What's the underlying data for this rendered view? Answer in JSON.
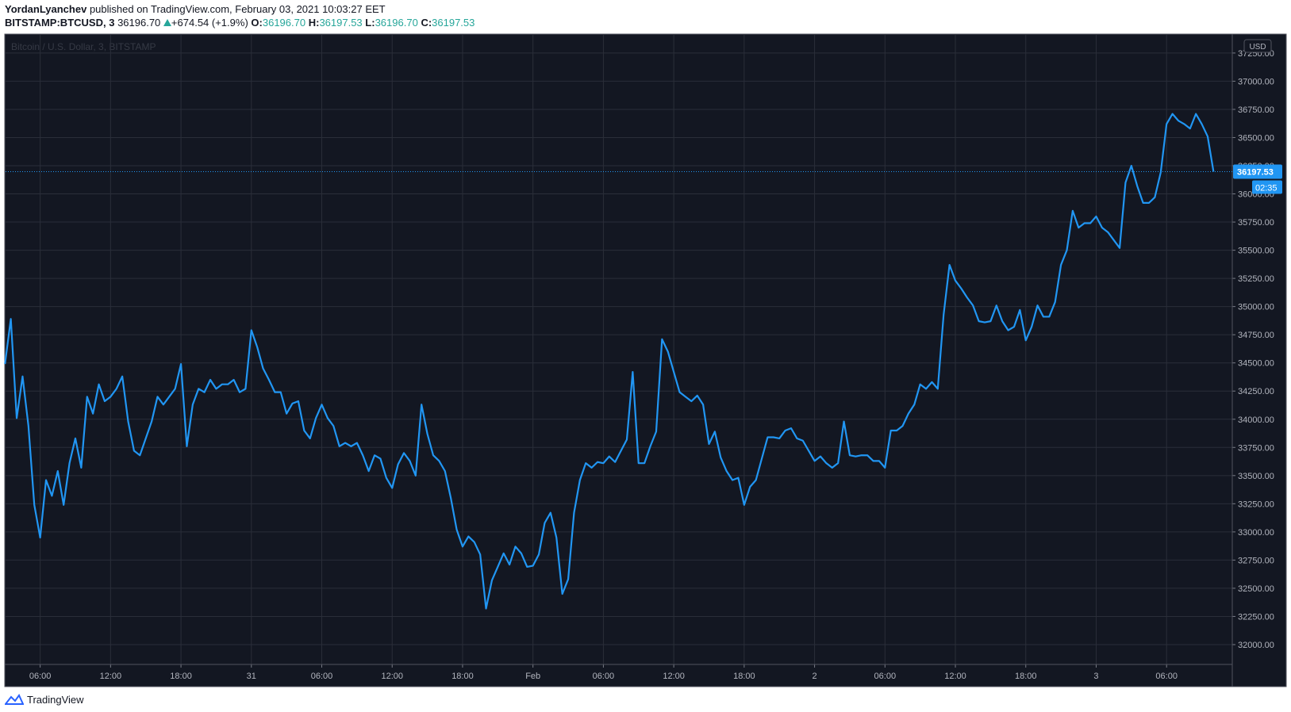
{
  "header": {
    "author": "YordanLyanchev",
    "published": "published on TradingView.com, February 03, 2021 10:03:27 EET"
  },
  "legend": {
    "symbol": "BITSTAMP:BTCUSD, 3",
    "last": "36196.70",
    "change": "+674.54 (+1.9%)",
    "open_label": "O:",
    "open": "36196.70",
    "high_label": "H:",
    "high": "36197.53",
    "low_label": "L:",
    "low": "36196.70",
    "close_label": "C:",
    "close": "36197.53"
  },
  "footer": {
    "brand": "TradingView"
  },
  "chart_data": {
    "type": "line",
    "watermark": "Bitcoin / U.S. Dollar, 3, BITSTAMP",
    "currency": "USD",
    "countdown": "02:35",
    "color": "#2196f3",
    "grid": true,
    "xlim": [
      3.05,
      107.6
    ],
    "xticks": [
      {
        "value": 6,
        "label": "06:00"
      },
      {
        "value": 12,
        "label": "12:00"
      },
      {
        "value": 18,
        "label": "18:00"
      },
      {
        "value": 24,
        "label": "31"
      },
      {
        "value": 30,
        "label": "06:00"
      },
      {
        "value": 36,
        "label": "12:00"
      },
      {
        "value": 42,
        "label": "18:00"
      },
      {
        "value": 48,
        "label": "Feb"
      },
      {
        "value": 54,
        "label": "06:00"
      },
      {
        "value": 60,
        "label": "12:00"
      },
      {
        "value": 66,
        "label": "18:00"
      },
      {
        "value": 72,
        "label": "2"
      },
      {
        "value": 78,
        "label": "06:00"
      },
      {
        "value": 84,
        "label": "12:00"
      },
      {
        "value": 90,
        "label": "18:00"
      },
      {
        "value": 96,
        "label": "3"
      },
      {
        "value": 102,
        "label": "06:00"
      }
    ],
    "ylim": [
      31824,
      37411
    ],
    "yticks": [
      {
        "value": 32000,
        "label": "32000.00"
      },
      {
        "value": 32250,
        "label": "32250.00"
      },
      {
        "value": 32500,
        "label": "32500.00"
      },
      {
        "value": 32750,
        "label": "32750.00"
      },
      {
        "value": 33000,
        "label": "33000.00"
      },
      {
        "value": 33250,
        "label": "33250.00"
      },
      {
        "value": 33500,
        "label": "33500.00"
      },
      {
        "value": 33750,
        "label": "33750.00"
      },
      {
        "value": 34000,
        "label": "34000.00"
      },
      {
        "value": 34250,
        "label": "34250.00"
      },
      {
        "value": 34500,
        "label": "34500.00"
      },
      {
        "value": 34750,
        "label": "34750.00"
      },
      {
        "value": 35000,
        "label": "35000.00"
      },
      {
        "value": 35250,
        "label": "35250.00"
      },
      {
        "value": 35500,
        "label": "35500.00"
      },
      {
        "value": 35750,
        "label": "35750.00"
      },
      {
        "value": 36000,
        "label": "36000.00"
      },
      {
        "value": 36250,
        "label": "36250.00"
      },
      {
        "value": 36500,
        "label": "36500.00"
      },
      {
        "value": 36750,
        "label": "36750.00"
      },
      {
        "value": 37000,
        "label": "37000.00"
      },
      {
        "value": 37250,
        "label": "37250.00"
      }
    ],
    "x": [
      3,
      3.5,
      4,
      4.5,
      5,
      5.5,
      6,
      6.5,
      7,
      7.5,
      8,
      8.5,
      9,
      9.5,
      10,
      10.5,
      11,
      11.5,
      12,
      12.5,
      13,
      13.5,
      14,
      14.5,
      15,
      15.5,
      16,
      16.5,
      17,
      17.5,
      18,
      18.5,
      19,
      19.5,
      20,
      20.5,
      21,
      21.5,
      22,
      22.5,
      23,
      23.5,
      24,
      24.5,
      25,
      25.5,
      26,
      26.5,
      27,
      27.5,
      28,
      28.5,
      29,
      29.5,
      30,
      30.5,
      31,
      31.5,
      32,
      32.5,
      33,
      33.5,
      34,
      34.5,
      35,
      35.5,
      36,
      36.5,
      37,
      37.5,
      38,
      38.5,
      39,
      39.5,
      40,
      40.5,
      41,
      41.5,
      42,
      42.5,
      43,
      43.5,
      44,
      44.5,
      45,
      45.5,
      46,
      46.5,
      47,
      47.5,
      48,
      48.5,
      49,
      49.5,
      50,
      50.5,
      51,
      51.5,
      52,
      52.5,
      53,
      53.5,
      54,
      54.5,
      55,
      55.5,
      56,
      56.5,
      57,
      57.5,
      58,
      58.5,
      59,
      59.5,
      60,
      60.5,
      61,
      61.5,
      62,
      62.5,
      63,
      63.5,
      64,
      64.5,
      65,
      65.5,
      66,
      66.5,
      67,
      67.5,
      68,
      68.5,
      69,
      69.5,
      70,
      70.5,
      71,
      71.5,
      72,
      72.5,
      73,
      73.5,
      74,
      74.5,
      75,
      75.5,
      76,
      76.5,
      77,
      77.5,
      78,
      78.5,
      79,
      79.5,
      80,
      80.5,
      81,
      81.5,
      82,
      82.5,
      83,
      83.5,
      84,
      84.5,
      85,
      85.5,
      86,
      86.5,
      87,
      87.5,
      88,
      88.5,
      89,
      89.5,
      90,
      90.5,
      91,
      91.5,
      92,
      92.5,
      93,
      93.5,
      94,
      94.5,
      95,
      95.5,
      96,
      96.5,
      97,
      97.5,
      98,
      98.5,
      99,
      99.5,
      100,
      100.5,
      101,
      101.5,
      102,
      102.5,
      103,
      103.5,
      104,
      104.5,
      105,
      105.5,
      106
    ],
    "values": [
      34490,
      34890,
      34010,
      34380,
      33940,
      33240,
      32950,
      33460,
      33320,
      33540,
      33240,
      33610,
      33830,
      33570,
      34200,
      34050,
      34310,
      34160,
      34200,
      34270,
      34380,
      33980,
      33720,
      33680,
      33830,
      33980,
      34200,
      34130,
      34200,
      34270,
      34490,
      33760,
      34130,
      34270,
      34240,
      34350,
      34270,
      34310,
      34310,
      34350,
      34240,
      34270,
      34790,
      34640,
      34450,
      34350,
      34240,
      34240,
      34050,
      34140,
      34160,
      33900,
      33830,
      34010,
      34130,
      34010,
      33940,
      33760,
      33790,
      33760,
      33790,
      33680,
      33540,
      33680,
      33650,
      33480,
      33390,
      33600,
      33700,
      33630,
      33500,
      34130,
      33870,
      33680,
      33630,
      33540,
      33300,
      33020,
      32870,
      32960,
      32910,
      32800,
      32320,
      32570,
      32690,
      32810,
      32710,
      32870,
      32810,
      32690,
      32700,
      32800,
      33080,
      33170,
      32950,
      32450,
      32580,
      33170,
      33460,
      33610,
      33570,
      33620,
      33610,
      33670,
      33620,
      33720,
      33820,
      34420,
      33610,
      33610,
      33760,
      33890,
      34710,
      34600,
      34420,
      34240,
      34200,
      34160,
      34210,
      34130,
      33780,
      33890,
      33660,
      33540,
      33460,
      33480,
      33240,
      33400,
      33460,
      33650,
      33840,
      33840,
      33830,
      33900,
      33920,
      33830,
      33810,
      33720,
      33630,
      33670,
      33610,
      33570,
      33610,
      33980,
      33680,
      33670,
      33680,
      33680,
      33630,
      33630,
      33570,
      33900,
      33900,
      33940,
      34050,
      34130,
      34310,
      34270,
      34330,
      34270,
      34930,
      35370,
      35230,
      35160,
      35080,
      35010,
      34870,
      34860,
      34870,
      35010,
      34870,
      34790,
      34820,
      34970,
      34700,
      34820,
      35010,
      34910,
      34910,
      35040,
      35370,
      35500,
      35850,
      35700,
      35740,
      35740,
      35800,
      35700,
      35660,
      35590,
      35520,
      36100,
      36250,
      36070,
      35920,
      35920,
      35970,
      36190,
      36620,
      36710,
      36650,
      36620,
      36580,
      36710,
      36620,
      36510,
      36197.53
    ]
  }
}
